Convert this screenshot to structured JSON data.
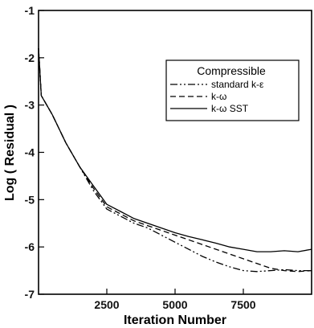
{
  "chart_data": {
    "type": "line",
    "xlabel": "Iteration Number",
    "ylabel": "Log ( Residual )",
    "xlim": [
      0,
      10000
    ],
    "ylim": [
      -7,
      -1
    ],
    "x_ticks": [
      2500,
      5000,
      7500
    ],
    "x_tick_labels": [
      "2500",
      "5000",
      "7500"
    ],
    "y_ticks": [
      -1,
      -2,
      -3,
      -4,
      -5,
      -6,
      -7
    ],
    "y_tick_labels": [
      "-1",
      "-2",
      "-3",
      "-4",
      "-5",
      "-6",
      "-7"
    ],
    "grid": false,
    "legend": {
      "title": "Compressible",
      "placement": "top-right"
    },
    "series": [
      {
        "name": "standard k-ε",
        "style": "dash-dot-dot",
        "x": [
          0,
          100,
          500,
          1000,
          1500,
          2000,
          2500,
          3000,
          3500,
          4000,
          4500,
          5000,
          5500,
          6000,
          6500,
          7000,
          7500,
          8000,
          8500,
          9000,
          9500,
          10000
        ],
        "y": [
          -1.8,
          -2.8,
          -3.2,
          -3.8,
          -4.3,
          -4.8,
          -5.2,
          -5.35,
          -5.5,
          -5.6,
          -5.75,
          -5.9,
          -6.05,
          -6.2,
          -6.32,
          -6.42,
          -6.5,
          -6.52,
          -6.5,
          -6.48,
          -6.5,
          -6.5
        ]
      },
      {
        "name": "k-ω",
        "style": "dashed",
        "x": [
          0,
          100,
          500,
          1000,
          1500,
          2000,
          2500,
          3000,
          3500,
          4000,
          4500,
          5000,
          5500,
          6000,
          6500,
          7000,
          7500,
          8000,
          8500,
          9000,
          9500,
          10000
        ],
        "y": [
          -1.8,
          -2.8,
          -3.2,
          -3.8,
          -4.3,
          -4.75,
          -5.15,
          -5.3,
          -5.45,
          -5.55,
          -5.65,
          -5.75,
          -5.85,
          -5.95,
          -6.05,
          -6.15,
          -6.25,
          -6.35,
          -6.45,
          -6.5,
          -6.52,
          -6.5
        ]
      },
      {
        "name": "k-ω SST",
        "style": "solid",
        "x": [
          0,
          100,
          500,
          1000,
          1500,
          2000,
          2500,
          3000,
          3500,
          4000,
          4500,
          5000,
          5500,
          6000,
          6500,
          7000,
          7500,
          8000,
          8500,
          9000,
          9500,
          10000
        ],
        "y": [
          -1.8,
          -2.8,
          -3.2,
          -3.8,
          -4.3,
          -4.7,
          -5.1,
          -5.25,
          -5.4,
          -5.5,
          -5.6,
          -5.7,
          -5.78,
          -5.85,
          -5.92,
          -6.0,
          -6.05,
          -6.1,
          -6.1,
          -6.08,
          -6.1,
          -6.05
        ]
      }
    ]
  }
}
